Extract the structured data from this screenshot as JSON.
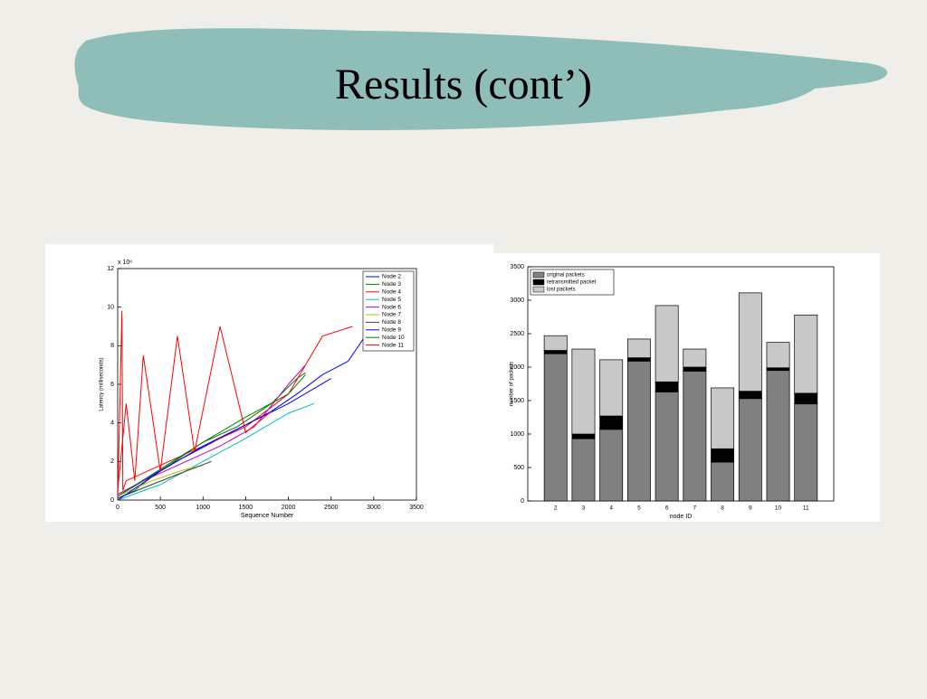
{
  "title": "Results (cont’)",
  "chart_data": [
    {
      "type": "line",
      "xlabel": "Sequence Number",
      "ylabel": "Latency (milliseconds)",
      "y_multiplier": "x 10⁶",
      "xlim": [
        0,
        3500
      ],
      "xticks": [
        0,
        500,
        1000,
        1500,
        2000,
        2500,
        3000,
        3500
      ],
      "ylim": [
        0,
        12
      ],
      "yticks": [
        0,
        2,
        4,
        6,
        8,
        10,
        12
      ],
      "legend": "top-right",
      "series": [
        {
          "name": "Node 2",
          "color": "#0000ff",
          "x": [
            0,
            300,
            600,
            900,
            1200,
            1500,
            1800,
            2100,
            2400,
            2700,
            2900
          ],
          "values": [
            0.2,
            1,
            1.8,
            2.5,
            3.2,
            3.9,
            4.6,
            5.5,
            6.5,
            7.2,
            8.5
          ]
        },
        {
          "name": "Node 3",
          "color": "#008000",
          "x": [
            0,
            200,
            400,
            600,
            800,
            1000,
            1400,
            1800,
            2100,
            2200
          ],
          "values": [
            0.1,
            0.5,
            1.2,
            1.8,
            2.4,
            3,
            3.8,
            5,
            6.3,
            6.6
          ]
        },
        {
          "name": "Node 4",
          "color": "#ff0000",
          "x": [
            0,
            50,
            60,
            100,
            500,
            1000,
            1500,
            2000,
            2400,
            2750
          ],
          "values": [
            0,
            9.8,
            0.5,
            1,
            1.8,
            2.8,
            3.8,
            5.5,
            8.5,
            9
          ]
        },
        {
          "name": "Node 5",
          "color": "#00bfbf",
          "x": [
            0,
            500,
            1000,
            1500,
            2000,
            2300
          ],
          "values": [
            0,
            0.8,
            2,
            3.2,
            4.5,
            5
          ]
        },
        {
          "name": "Node 6",
          "color": "#bf00bf",
          "x": [
            0,
            300,
            600,
            900,
            1200,
            1600,
            2000,
            2200
          ],
          "values": [
            0.3,
            1,
            1.6,
            2.2,
            2.8,
            3.8,
            6,
            7
          ]
        },
        {
          "name": "Node 7",
          "color": "#bfbf00",
          "x": [
            0,
            400,
            800,
            1000
          ],
          "values": [
            0.2,
            1,
            1.6,
            1.8
          ]
        },
        {
          "name": "Node 8",
          "color": "#404040",
          "x": [
            0,
            400,
            800,
            1100
          ],
          "values": [
            0.1,
            0.8,
            1.5,
            2
          ]
        },
        {
          "name": "Node 9",
          "color": "#0000ff",
          "x": [
            0,
            500,
            1000,
            1500,
            2000,
            2500
          ],
          "values": [
            0,
            1.5,
            2.8,
            3.9,
            5,
            6.3
          ]
        },
        {
          "name": "Node 10",
          "color": "#008000",
          "x": [
            0,
            500,
            1000,
            1500,
            2000,
            2200
          ],
          "values": [
            0.2,
            1.6,
            3,
            4.3,
            5.5,
            6.5
          ]
        },
        {
          "name": "Node 11",
          "color": "#ff0000",
          "x": [
            0,
            100,
            200,
            300,
            500,
            700,
            900,
            1200,
            1500,
            1800
          ],
          "values": [
            0.5,
            5,
            1,
            7.5,
            1.5,
            8.5,
            2.5,
            9,
            3.5,
            4.6
          ]
        }
      ]
    },
    {
      "type": "stacked-bar",
      "xlabel": "node ID",
      "ylabel": "number of packets",
      "categories": [
        "2",
        "3",
        "4",
        "5",
        "6",
        "7",
        "8",
        "9",
        "10",
        "11"
      ],
      "ylim": [
        0,
        3500
      ],
      "yticks": [
        0,
        500,
        1000,
        1500,
        2000,
        2500,
        3000,
        3500
      ],
      "legend": "top-left",
      "series": [
        {
          "name": "original packets",
          "color": "#808080",
          "values": [
            2200,
            930,
            1070,
            2090,
            1630,
            1940,
            580,
            1530,
            1950,
            1450
          ]
        },
        {
          "name": "retransmitted packet",
          "color": "#000000",
          "values": [
            50,
            70,
            200,
            50,
            150,
            60,
            200,
            110,
            40,
            160
          ]
        },
        {
          "name": "lost packets",
          "color": "#c8c8c8",
          "values": [
            220,
            1270,
            840,
            280,
            1140,
            270,
            910,
            1470,
            380,
            1170
          ]
        }
      ]
    }
  ]
}
